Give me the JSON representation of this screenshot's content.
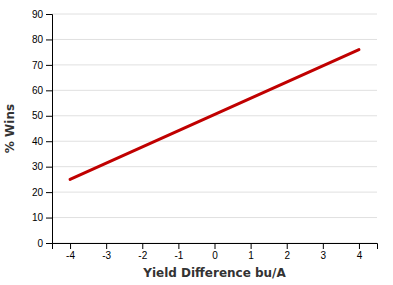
{
  "chart_data": {
    "type": "line",
    "xlabel": "Yield Difference bu/A",
    "ylabel": "% Wins",
    "x": [
      -4,
      4
    ],
    "values": [
      25,
      76
    ],
    "color": "#C00000",
    "xlim": [
      -4.5,
      4.5
    ],
    "ylim": [
      0,
      90
    ],
    "xticks": [
      -4,
      -3,
      -2,
      -1,
      0,
      1,
      2,
      3,
      4
    ],
    "yticks": [
      0,
      10,
      20,
      30,
      40,
      50,
      60,
      70,
      80,
      90
    ],
    "grid": true
  }
}
